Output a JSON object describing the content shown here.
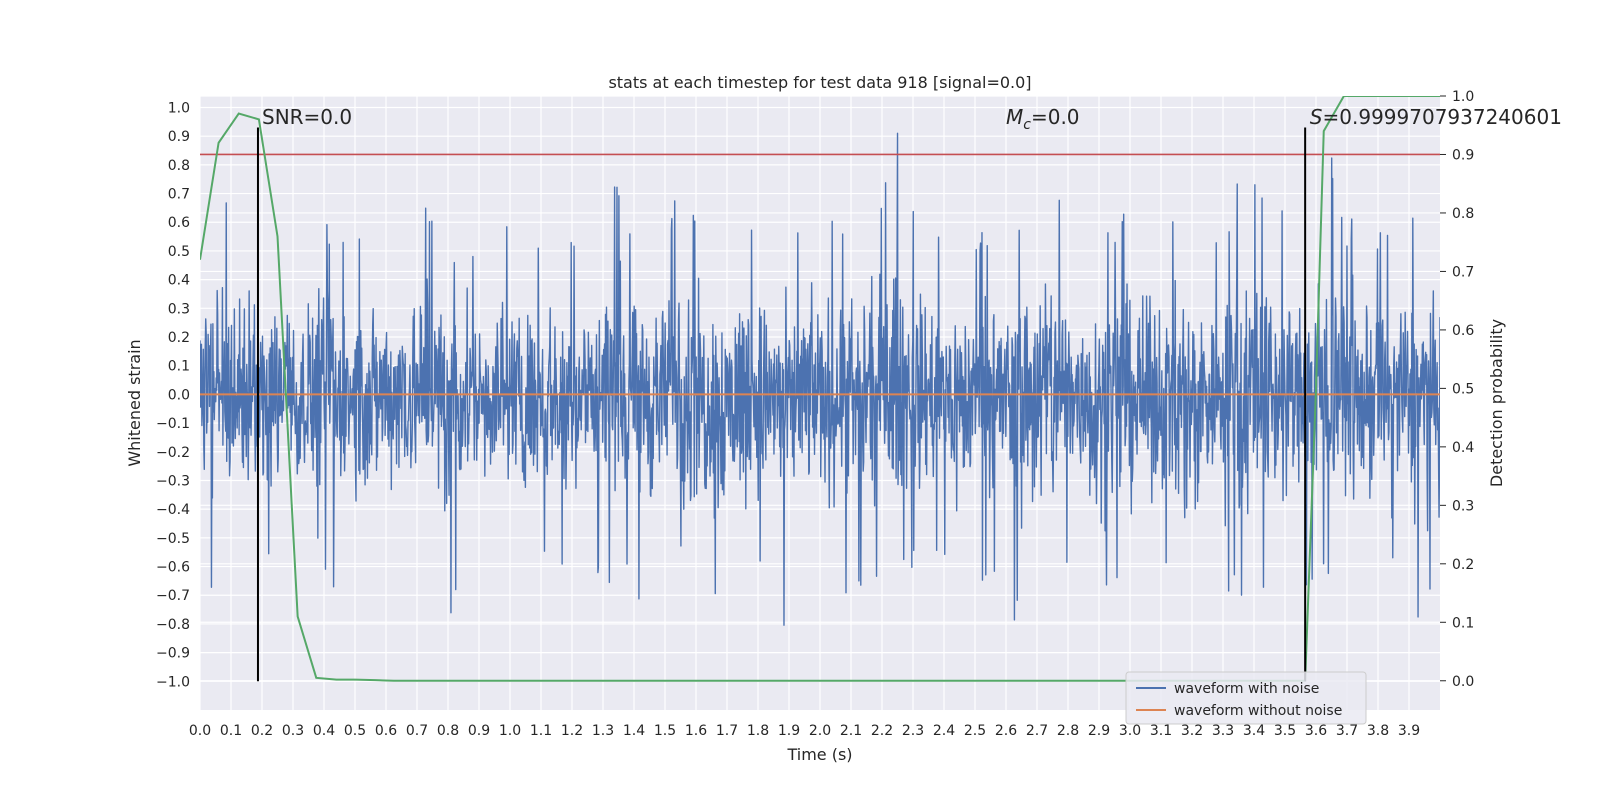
{
  "chart_data": {
    "type": "line",
    "title": "stats at each timestep for test data 918 [signal=0.0]",
    "xlabel": "Time (s)",
    "ylabel": "Whitened strain",
    "y2label": "Detection probability",
    "xlim": [
      0.0,
      4.0
    ],
    "ylim": [
      -1.1,
      1.04
    ],
    "y2lim": [
      -0.05,
      1.0
    ],
    "x_ticks": [
      "0.0",
      "0.1",
      "0.2",
      "0.3",
      "0.4",
      "0.5",
      "0.6",
      "0.7",
      "0.8",
      "0.9",
      "1.0",
      "1.1",
      "1.2",
      "1.3",
      "1.4",
      "1.5",
      "1.6",
      "1.7",
      "1.8",
      "1.9",
      "2.0",
      "2.1",
      "2.2",
      "2.3",
      "2.4",
      "2.5",
      "2.6",
      "2.7",
      "2.8",
      "2.9",
      "3.0",
      "3.1",
      "3.2",
      "3.3",
      "3.4",
      "3.5",
      "3.6",
      "3.7",
      "3.8",
      "3.9"
    ],
    "y_ticks": [
      "1.0",
      "0.9",
      "0.8",
      "0.7",
      "0.6",
      "0.5",
      "0.4",
      "0.3",
      "0.2",
      "0.1",
      "0.0",
      "-0.1",
      "-0.2",
      "-0.3",
      "-0.4",
      "-0.5",
      "-0.6",
      "-0.7",
      "-0.8",
      "-0.9",
      "-1.0"
    ],
    "y2_ticks": [
      "1.0",
      "0.9",
      "0.8",
      "0.7",
      "0.6",
      "0.5",
      "0.4",
      "0.3",
      "0.2",
      "0.1",
      "0.0"
    ],
    "grid": true,
    "series": [
      {
        "name": "waveform with noise",
        "axis": "left",
        "color": "#4c72b0",
        "envelope": {
          "x": [
            0.0,
            0.05,
            0.1,
            0.15,
            0.2,
            0.25,
            0.3,
            0.35,
            0.4,
            0.45,
            0.5,
            0.55,
            0.6,
            0.65,
            0.7,
            0.75,
            0.8,
            0.85,
            0.9,
            0.95,
            1.0,
            1.05,
            1.1,
            1.15,
            1.2,
            1.25,
            1.3,
            1.35,
            1.4,
            1.45,
            1.5,
            1.55,
            1.6,
            1.65,
            1.7,
            1.75,
            1.8,
            1.85,
            1.9,
            1.95,
            2.0,
            2.05,
            2.1,
            2.15,
            2.2,
            2.25,
            2.3,
            2.35,
            2.4,
            2.45,
            2.5,
            2.55,
            2.6,
            2.65,
            2.7,
            2.75,
            2.8,
            2.85,
            2.9,
            2.95,
            3.0,
            3.05,
            3.1,
            3.15,
            3.2,
            3.25,
            3.3,
            3.35,
            3.4,
            3.45,
            3.5,
            3.55,
            3.6,
            3.65,
            3.7,
            3.75,
            3.8,
            3.85,
            3.9,
            3.95,
            4.0
          ],
          "max": [
            0.68,
            0.55,
            0.72,
            0.54,
            0.6,
            0.65,
            0.45,
            0.6,
            0.62,
            0.55,
            0.6,
            0.55,
            0.58,
            0.7,
            0.7,
            0.62,
            0.56,
            0.5,
            0.55,
            0.58,
            0.6,
            0.57,
            0.54,
            0.6,
            0.6,
            0.58,
            0.88,
            0.82,
            0.55,
            0.6,
            0.55,
            0.79,
            0.6,
            0.6,
            0.58,
            0.75,
            0.6,
            0.6,
            0.55,
            0.58,
            0.62,
            0.6,
            0.58,
            0.65,
            0.72,
            0.93,
            0.7,
            0.6,
            0.58,
            0.6,
            0.56,
            0.62,
            0.55,
            0.64,
            0.85,
            0.9,
            0.6,
            0.65,
            0.6,
            0.62,
            0.7,
            0.57,
            0.62,
            0.6,
            0.6,
            0.65,
            0.55,
            0.75,
            0.8,
            0.66,
            0.65,
            0.6,
            0.68,
            0.84,
            0.6,
            0.65,
            0.58,
            0.6,
            0.62,
            0.6,
            0.6
          ],
          "min": [
            -0.55,
            -0.72,
            -0.5,
            -0.55,
            -0.68,
            -0.55,
            -0.57,
            -0.48,
            -0.65,
            -0.78,
            -0.6,
            -0.75,
            -0.5,
            -0.6,
            -0.62,
            -0.6,
            -0.84,
            -0.55,
            -0.6,
            -0.5,
            -0.55,
            -0.6,
            -0.62,
            -0.6,
            -0.58,
            -0.62,
            -0.7,
            -0.6,
            -0.72,
            -0.75,
            -0.62,
            -0.6,
            -0.91,
            -0.68,
            -0.9,
            -0.72,
            -0.6,
            -0.8,
            -0.86,
            -0.6,
            -0.6,
            -0.72,
            -0.76,
            -0.7,
            -0.62,
            -0.65,
            -0.6,
            -0.55,
            -0.62,
            -0.8,
            -0.75,
            -0.6,
            -0.68,
            -0.88,
            -0.75,
            -0.8,
            -0.62,
            -0.68,
            -0.81,
            -0.7,
            -0.72,
            -0.7,
            -0.6,
            -0.75,
            -0.98,
            -0.62,
            -0.7,
            -0.75,
            -0.85,
            -0.7,
            -0.6,
            -0.65,
            -0.72,
            -0.62,
            -0.76,
            -0.75,
            -0.7,
            -0.6,
            -0.79,
            -0.88,
            -0.6
          ]
        }
      },
      {
        "name": "waveform without noise",
        "axis": "left",
        "color": "#dd8452",
        "x": [
          0.0,
          4.0
        ],
        "values": [
          0.0,
          0.0
        ]
      },
      {
        "axis": "right",
        "color": "#55a868",
        "x": [
          0.0,
          0.06,
          0.125,
          0.19,
          0.25,
          0.315,
          0.375,
          0.44,
          0.5,
          0.565,
          0.625,
          0.75,
          1.0,
          1.5,
          2.0,
          2.5,
          3.0,
          3.25,
          3.5,
          3.565,
          3.6,
          3.625,
          3.69,
          3.75,
          3.82,
          3.875,
          3.94,
          4.0
        ],
        "values": [
          0.72,
          0.92,
          0.97,
          0.96,
          0.76,
          0.11,
          0.005,
          0.002,
          0.002,
          0.001,
          0.0,
          0.0,
          0.0,
          0.0,
          0.0,
          0.0,
          0.0,
          0.0,
          0.0,
          0.0,
          0.5,
          0.94,
          1.0,
          1.0,
          1.0,
          1.0,
          1.0,
          1.0
        ]
      }
    ],
    "hlines": [
      {
        "axis": "right",
        "y": 0.9,
        "color": "#c44e52"
      }
    ],
    "vlines": [
      {
        "x": 0.187,
        "color": "#000000"
      },
      {
        "x": 3.565,
        "color": "#000000"
      }
    ],
    "annotations": [
      {
        "text": "SNR=0.0",
        "x": 0.2
      },
      {
        "text": "=0.0",
        "x": 2.6,
        "math": "M_c"
      },
      {
        "text": "=0.9999707937240601",
        "x": 3.58,
        "math": "S"
      }
    ],
    "legend": {
      "placement": "lower-right",
      "entries": [
        {
          "name": "waveform with noise",
          "color": "#4c72b0"
        },
        {
          "name": "waveform without noise",
          "color": "#dd8452"
        }
      ]
    }
  }
}
